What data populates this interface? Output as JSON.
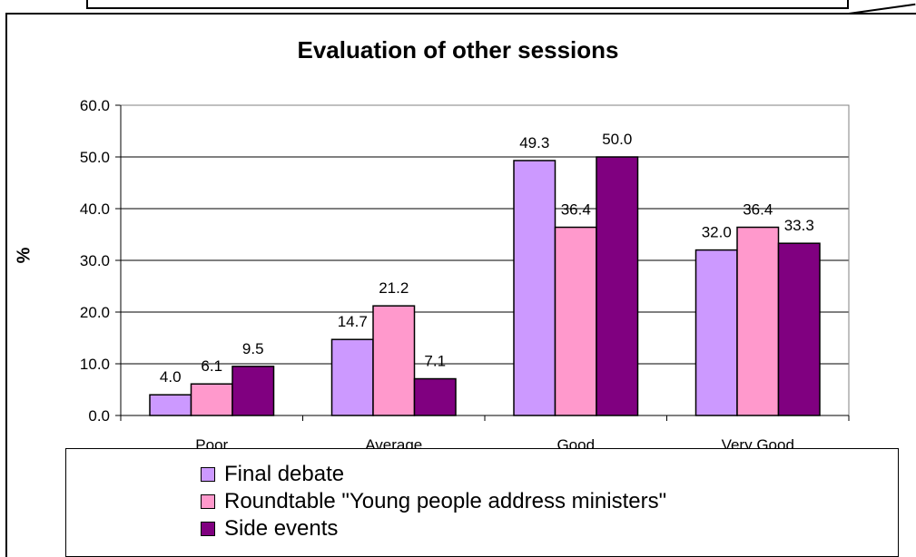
{
  "chart_data": {
    "type": "bar",
    "title": "Evaluation of other sessions",
    "xlabel": "",
    "ylabel": "%",
    "ylim": [
      0,
      60
    ],
    "yticks": [
      "0.0",
      "10.0",
      "20.0",
      "30.0",
      "40.0",
      "50.0",
      "60.0"
    ],
    "categories": [
      "Poor",
      "Average",
      "Good",
      "Very Good"
    ],
    "series": [
      {
        "name": "Final debate",
        "color": "#cc99ff",
        "values": [
          4.0,
          14.7,
          49.3,
          32.0
        ],
        "labels": [
          "4.0",
          "14.7",
          "49.3",
          "32.0"
        ]
      },
      {
        "name": "Roundtable \"Young people address ministers\"",
        "color": "#ff99cc",
        "values": [
          6.1,
          21.2,
          36.4,
          36.4
        ],
        "labels": [
          "6.1",
          "21.2",
          "36.4",
          "36.4"
        ]
      },
      {
        "name": "Side events",
        "color": "#800080",
        "values": [
          9.5,
          7.1,
          50.0,
          33.3
        ],
        "labels": [
          "9.5",
          "7.1",
          "50.0",
          "33.3"
        ]
      }
    ],
    "grid": true,
    "legend_position": "bottom"
  }
}
